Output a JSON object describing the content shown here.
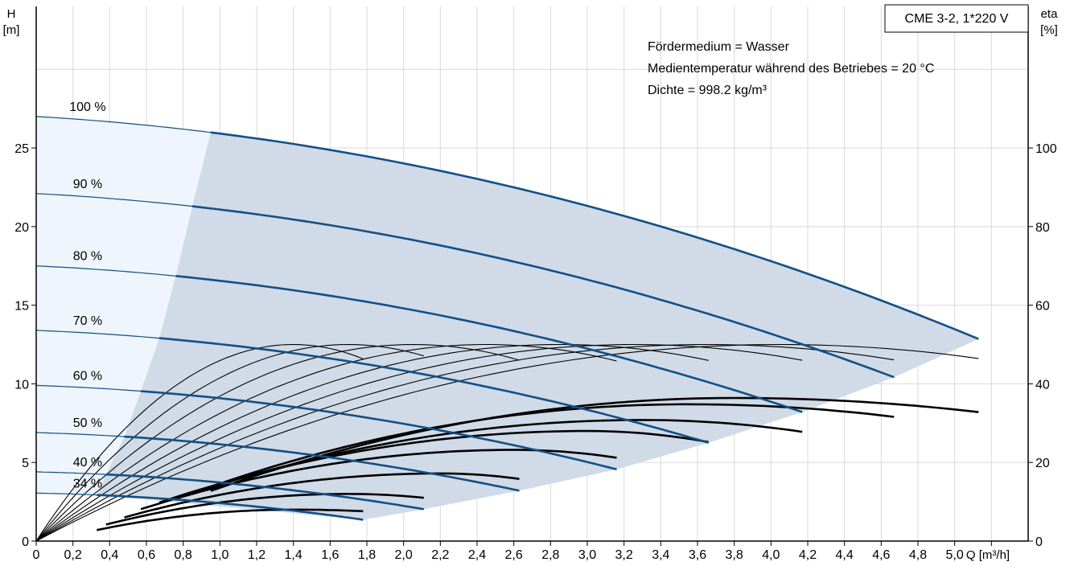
{
  "chart_data": {
    "type": "line",
    "title": "CME 3-2, 1*220 V",
    "xlabel": "Q [m³/h]",
    "ylabel_left": [
      "H",
      "[m]"
    ],
    "ylabel_right": [
      "eta",
      "[%]"
    ],
    "xlim": [
      0,
      5.4
    ],
    "ylim_left": [
      0,
      34
    ],
    "ylim_right": [
      0,
      136
    ],
    "x_ticks": [
      0,
      0.2,
      0.4,
      0.6,
      0.8,
      1.0,
      1.2,
      1.4,
      1.6,
      1.8,
      2.0,
      2.2,
      2.4,
      2.6,
      2.8,
      3.0,
      3.2,
      3.4,
      3.6,
      3.8,
      4.0,
      4.2,
      4.4,
      4.6,
      4.8,
      5.0
    ],
    "x_tick_labels": [
      "0",
      "0,2",
      "0,4",
      "0,6",
      "0,8",
      "1,0",
      "1,2",
      "1,4",
      "1,6",
      "1,8",
      "2,0",
      "2,2",
      "2,4",
      "2,6",
      "2,8",
      "3,0",
      "3,2",
      "3,4",
      "3,6",
      "3,8",
      "4,0",
      "4,2",
      "4,4",
      "4,6",
      "4,8",
      "5,0"
    ],
    "y_left_ticks": [
      0,
      5,
      10,
      15,
      20,
      25
    ],
    "y_right_ticks": [
      0,
      20,
      40,
      60,
      80,
      100
    ],
    "grid": true,
    "notes": [
      "Fördermedium = Wasser",
      "Medientemperatur während des Betriebes = 20 °C",
      "Dichte = 998.2 kg/m³"
    ],
    "speed_curves": [
      {
        "label": "100 %",
        "H0": 27.0,
        "a": 0.68,
        "b": 0.405,
        "qmax": 5.13,
        "qmin": 0.95
      },
      {
        "label": "90 %",
        "H0": 22.1,
        "a": 0.61,
        "b": 0.405,
        "qmax": 4.67,
        "qmin": 0.85
      },
      {
        "label": "80 %",
        "H0": 17.5,
        "a": 0.54,
        "b": 0.405,
        "qmax": 4.17,
        "qmin": 0.76
      },
      {
        "label": "70 %",
        "H0": 13.4,
        "a": 0.47,
        "b": 0.405,
        "qmax": 3.66,
        "qmin": 0.67
      },
      {
        "label": "60 %",
        "H0": 9.9,
        "a": 0.41,
        "b": 0.405,
        "qmax": 3.16,
        "qmin": 0.57
      },
      {
        "label": "50 %",
        "H0": 6.9,
        "a": 0.34,
        "b": 0.405,
        "qmax": 2.63,
        "qmin": 0.48
      },
      {
        "label": "40 %",
        "H0": 4.4,
        "a": 0.27,
        "b": 0.405,
        "qmax": 2.11,
        "qmin": 0.38
      },
      {
        "label": "34 %",
        "H0": 3.05,
        "a": 0.23,
        "b": 0.405,
        "qmax": 1.78,
        "qmin": 0.33
      }
    ],
    "efficiency_curves": [
      {
        "qpeak": 1.4,
        "etapeak": 50,
        "qend": 1.78
      },
      {
        "qpeak": 1.7,
        "etapeak": 50,
        "qend": 2.11
      },
      {
        "qpeak": 2.05,
        "etapeak": 50,
        "qend": 2.63
      },
      {
        "qpeak": 2.45,
        "etapeak": 50,
        "qend": 3.16
      },
      {
        "qpeak": 2.85,
        "etapeak": 50,
        "qend": 3.66
      },
      {
        "qpeak": 3.25,
        "etapeak": 50,
        "qend": 4.17
      },
      {
        "qpeak": 3.65,
        "etapeak": 50,
        "qend": 4.67
      },
      {
        "qpeak": 4.05,
        "etapeak": 50,
        "qend": 5.13
      }
    ],
    "power_curves": [
      {
        "qstart": 0.33,
        "peak": 2.0,
        "qpeak": 1.4,
        "qend": 1.78,
        "end": 1.9
      },
      {
        "qstart": 0.38,
        "peak": 3.0,
        "qpeak": 1.7,
        "qend": 2.11,
        "end": 2.75
      },
      {
        "qstart": 0.48,
        "peak": 4.3,
        "qpeak": 2.2,
        "qend": 2.63,
        "end": 3.95
      },
      {
        "qstart": 0.57,
        "peak": 5.8,
        "qpeak": 2.6,
        "qend": 3.16,
        "end": 5.3
      },
      {
        "qstart": 0.67,
        "peak": 7.0,
        "qpeak": 3.0,
        "qend": 3.66,
        "end": 6.3
      },
      {
        "qstart": 0.76,
        "peak": 7.7,
        "qpeak": 3.3,
        "qend": 4.17,
        "end": 6.95
      },
      {
        "qstart": 0.85,
        "peak": 8.7,
        "qpeak": 3.55,
        "qend": 4.67,
        "end": 7.9
      },
      {
        "qstart": 0.95,
        "peak": 9.1,
        "qpeak": 3.8,
        "qend": 5.13,
        "end": 8.2
      }
    ]
  }
}
